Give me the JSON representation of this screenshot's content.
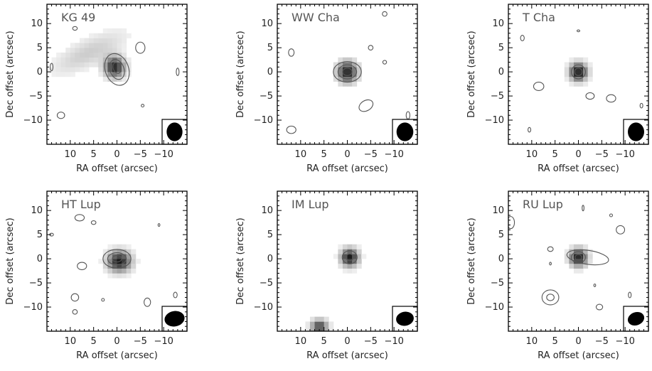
{
  "chart_data": {
    "type": "heatmap",
    "layout": "2x3 grid of maps",
    "axes": {
      "xlabel": "RA offset (arcsec)",
      "ylabel": "Dec offset (arcsec)",
      "xlim": [
        15,
        -15
      ],
      "ylim": [
        -15,
        14
      ],
      "xticks": [
        10,
        5,
        0,
        -5,
        -10
      ],
      "xtick_labels": [
        "10",
        "5",
        "0",
        "−5",
        "−10"
      ],
      "yticks": [
        10,
        5,
        0,
        -5,
        -10
      ],
      "ytick_labels": [
        "10",
        "5",
        "0",
        "−5",
        "−10"
      ]
    },
    "panels": [
      {
        "title": "KG 49",
        "beam": {
          "major": 4.0,
          "minor": 3.4,
          "pa": 0
        },
        "emission": [
          {
            "ra": 0.5,
            "dec": 1,
            "peak": 0.85,
            "w": 3,
            "h": 3,
            "angle": 0
          },
          {
            "ra": 6,
            "dec": 4,
            "peak": 0.2,
            "w": 12,
            "h": 4,
            "angle": -25
          }
        ],
        "contours": [
          {
            "ra": 0,
            "dec": 0.5,
            "rx": 2.5,
            "ry": 3.5,
            "angle": 20
          },
          {
            "ra": 0,
            "dec": 0.5,
            "rx": 1.5,
            "ry": 2.2,
            "angle": 20
          },
          {
            "ra": 0,
            "dec": 0.8,
            "rx": 0.8,
            "ry": 1.2,
            "angle": 20
          },
          {
            "ra": -5,
            "dec": 5,
            "rx": 1.0,
            "ry": 1.2,
            "angle": 0
          },
          {
            "ra": 9,
            "dec": 9,
            "rx": 0.5,
            "ry": 0.4,
            "angle": 0
          },
          {
            "ra": 12,
            "dec": -9,
            "rx": 0.8,
            "ry": 0.7,
            "angle": 0
          },
          {
            "ra": 14,
            "dec": 1,
            "rx": 0.3,
            "ry": 0.8,
            "angle": 0
          },
          {
            "ra": -13,
            "dec": 0,
            "rx": 0.3,
            "ry": 0.8,
            "angle": 0
          },
          {
            "ra": -5.5,
            "dec": -7,
            "rx": 0.3,
            "ry": 0.3,
            "angle": 0
          }
        ]
      },
      {
        "title": "WW Cha",
        "beam": {
          "major": 4.0,
          "minor": 3.6,
          "pa": 0
        },
        "emission": [
          {
            "ra": 0,
            "dec": 0,
            "peak": 0.9,
            "w": 3,
            "h": 3,
            "angle": 0
          }
        ],
        "contours": [
          {
            "ra": 0,
            "dec": 0,
            "rx": 3,
            "ry": 2.2,
            "angle": 0
          },
          {
            "ra": 0,
            "dec": 0,
            "rx": 2,
            "ry": 1.5,
            "angle": 0
          },
          {
            "ra": 0,
            "dec": 0,
            "rx": 1,
            "ry": 0.8,
            "angle": 0
          },
          {
            "ra": -4,
            "dec": -7,
            "rx": 1.6,
            "ry": 1.1,
            "angle": 30
          },
          {
            "ra": 12,
            "dec": 4,
            "rx": 0.6,
            "ry": 0.8,
            "angle": 0
          },
          {
            "ra": 12,
            "dec": -12,
            "rx": 1.0,
            "ry": 0.8,
            "angle": 0
          },
          {
            "ra": -8,
            "dec": 12,
            "rx": 0.5,
            "ry": 0.5,
            "angle": 0
          },
          {
            "ra": -8,
            "dec": 2,
            "rx": 0.4,
            "ry": 0.4,
            "angle": 0
          },
          {
            "ra": -13,
            "dec": -9,
            "rx": 0.4,
            "ry": 0.8,
            "angle": 0
          },
          {
            "ra": -5,
            "dec": 5,
            "rx": 0.5,
            "ry": 0.5,
            "angle": 0
          }
        ]
      },
      {
        "title": "T Cha",
        "beam": {
          "major": 4.0,
          "minor": 3.5,
          "pa": 0
        },
        "emission": [
          {
            "ra": 0,
            "dec": 0,
            "peak": 0.95,
            "w": 2.6,
            "h": 2.6,
            "angle": 0
          }
        ],
        "contours": [
          {
            "ra": 0,
            "dec": 0,
            "rx": 1.5,
            "ry": 1.5,
            "angle": 0
          },
          {
            "ra": 0,
            "dec": 0,
            "rx": 0.8,
            "ry": 0.8,
            "angle": 0
          },
          {
            "ra": 8.5,
            "dec": -3,
            "rx": 1.1,
            "ry": 0.9,
            "angle": 0
          },
          {
            "ra": 12,
            "dec": 7,
            "rx": 0.4,
            "ry": 0.6,
            "angle": 0
          },
          {
            "ra": -7,
            "dec": -5.5,
            "rx": 1.0,
            "ry": 0.8,
            "angle": 0
          },
          {
            "ra": -2.5,
            "dec": -5,
            "rx": 0.9,
            "ry": 0.7,
            "angle": 0
          },
          {
            "ra": 10.5,
            "dec": -12,
            "rx": 0.3,
            "ry": 0.5,
            "angle": 0
          },
          {
            "ra": 0,
            "dec": 8.5,
            "rx": 0.3,
            "ry": 0.2,
            "angle": 0
          },
          {
            "ra": -13.5,
            "dec": -7,
            "rx": 0.3,
            "ry": 0.5,
            "angle": 0
          }
        ]
      },
      {
        "title": "HT Lup",
        "beam": {
          "major": 4.3,
          "minor": 3.3,
          "pa": 80
        },
        "emission": [
          {
            "ra": -0.5,
            "dec": -0.5,
            "peak": 0.9,
            "w": 3.5,
            "h": 3,
            "angle": 0
          }
        ],
        "contours": [
          {
            "ra": 0,
            "dec": 0,
            "rx": 3,
            "ry": 2,
            "angle": 0
          },
          {
            "ra": 0,
            "dec": 0,
            "rx": 2,
            "ry": 1.3,
            "angle": 0
          },
          {
            "ra": 0,
            "dec": 0,
            "rx": 1,
            "ry": 0.7,
            "angle": 0
          },
          {
            "ra": 8,
            "dec": 8.5,
            "rx": 1.0,
            "ry": 0.7,
            "angle": 0
          },
          {
            "ra": 5,
            "dec": 7.5,
            "rx": 0.5,
            "ry": 0.4,
            "angle": 0
          },
          {
            "ra": 7.5,
            "dec": -1.5,
            "rx": 1.0,
            "ry": 0.8,
            "angle": 0
          },
          {
            "ra": 9,
            "dec": -8,
            "rx": 0.8,
            "ry": 0.8,
            "angle": 0
          },
          {
            "ra": 9,
            "dec": -11,
            "rx": 0.5,
            "ry": 0.5,
            "angle": 0
          },
          {
            "ra": 14,
            "dec": 5,
            "rx": 0.4,
            "ry": 0.3,
            "angle": 0
          },
          {
            "ra": -6.5,
            "dec": -9,
            "rx": 0.7,
            "ry": 0.9,
            "angle": 0
          },
          {
            "ra": -12.5,
            "dec": -7.5,
            "rx": 0.4,
            "ry": 0.6,
            "angle": 0
          },
          {
            "ra": 3,
            "dec": -8.5,
            "rx": 0.3,
            "ry": 0.3,
            "angle": 0
          },
          {
            "ra": -9,
            "dec": 7,
            "rx": 0.2,
            "ry": 0.3,
            "angle": 0
          }
        ]
      },
      {
        "title": "IM Lup",
        "beam": {
          "major": 3.8,
          "minor": 3.0,
          "pa": 80
        },
        "emission": [
          {
            "ra": -0.5,
            "dec": 0.3,
            "peak": 0.9,
            "w": 2.6,
            "h": 2.6,
            "angle": 0
          },
          {
            "ra": 6,
            "dec": -14,
            "peak": 0.75,
            "w": 2.5,
            "h": 2,
            "angle": 0
          }
        ],
        "contours": [
          {
            "ra": -0.5,
            "dec": 0.3,
            "rx": 1.6,
            "ry": 1.4,
            "angle": 0
          },
          {
            "ra": -0.5,
            "dec": 0.3,
            "rx": 0.8,
            "ry": 0.7,
            "angle": 0
          }
        ]
      },
      {
        "title": "RU Lup",
        "beam": {
          "major": 3.6,
          "minor": 2.8,
          "pa": 70
        },
        "emission": [
          {
            "ra": 0,
            "dec": 0.3,
            "peak": 0.9,
            "w": 2.6,
            "h": 2.6,
            "angle": 0
          }
        ],
        "contours": [
          {
            "ra": -2,
            "dec": 0.3,
            "rx": 4.5,
            "ry": 1.5,
            "angle": -8
          },
          {
            "ra": 0,
            "dec": 0.3,
            "rx": 1.5,
            "ry": 1.2,
            "angle": 0
          },
          {
            "ra": 0,
            "dec": 0.3,
            "rx": 0.7,
            "ry": 0.6,
            "angle": 0
          },
          {
            "ra": 6,
            "dec": -8,
            "rx": 1.8,
            "ry": 1.6,
            "angle": 0
          },
          {
            "ra": 6,
            "dec": -8,
            "rx": 0.8,
            "ry": 0.7,
            "angle": 0
          },
          {
            "ra": -9,
            "dec": 6,
            "rx": 0.9,
            "ry": 0.9,
            "angle": 0
          },
          {
            "ra": 14.5,
            "dec": 7.5,
            "rx": 0.8,
            "ry": 1.3,
            "angle": 0
          },
          {
            "ra": 6,
            "dec": 2,
            "rx": 0.6,
            "ry": 0.5,
            "angle": 0
          },
          {
            "ra": -7,
            "dec": 9,
            "rx": 0.3,
            "ry": 0.3,
            "angle": 0
          },
          {
            "ra": -1,
            "dec": 10.5,
            "rx": 0.2,
            "ry": 0.6,
            "angle": 0
          },
          {
            "ra": 6,
            "dec": -1,
            "rx": 0.2,
            "ry": 0.3,
            "angle": 0
          },
          {
            "ra": -4.5,
            "dec": -10,
            "rx": 0.7,
            "ry": 0.6,
            "angle": 0
          },
          {
            "ra": -11,
            "dec": -7.5,
            "rx": 0.3,
            "ry": 0.6,
            "angle": 0
          },
          {
            "ra": -3.5,
            "dec": -5.5,
            "rx": 0.2,
            "ry": 0.3,
            "angle": 0
          }
        ]
      }
    ]
  },
  "colors": {
    "contour": "#555555",
    "emission_max": "#000000",
    "background": "#ffffff",
    "beam": "#000000"
  }
}
